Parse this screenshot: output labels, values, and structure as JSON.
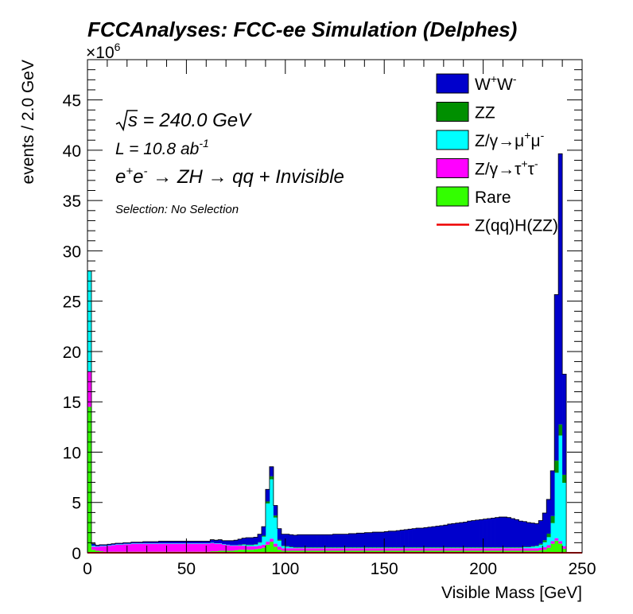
{
  "chart_data": {
    "type": "bar",
    "stacked": true,
    "title": "FCCAnalyses: FCC-ee Simulation (Delphes)",
    "xlabel": "Visible Mass [GeV]",
    "ylabel": "events / 2.0 GeV",
    "y_multiplier_label": "×10",
    "y_multiplier_exponent": "6",
    "xlim": [
      0,
      250
    ],
    "ylim": [
      0,
      49
    ],
    "bin_width": 2,
    "x_ticks": [
      0,
      50,
      100,
      150,
      200,
      250
    ],
    "x_tick_labels": [
      "0",
      "50",
      "100",
      "150",
      "200",
      "250"
    ],
    "y_ticks": [
      0,
      5,
      10,
      15,
      20,
      25,
      30,
      35,
      40,
      45
    ],
    "y_tick_labels": [
      "0",
      "5",
      "10",
      "15",
      "20",
      "25",
      "30",
      "35",
      "40",
      "45"
    ],
    "annotations": {
      "sqrt_s": "s",
      "energy": " = 240.0 GeV",
      "lumi": "L = 10.8 ab",
      "lumi_exp": "-1",
      "process_a": "e",
      "process_b": "e",
      "process_c": " → ZH → qq + Invisible",
      "selection": "Selection: No Selection"
    },
    "legend": {
      "placement": "top-right",
      "entries": [
        {
          "key": "ww",
          "parts": [
            "W",
            "+",
            "W",
            "-"
          ],
          "color": "#0000cc",
          "style": "fill"
        },
        {
          "key": "zz",
          "parts": [
            "ZZ"
          ],
          "color": "#008f00",
          "style": "fill"
        },
        {
          "key": "zmumu",
          "parts": [
            "Z/γ→μ",
            "+",
            "μ",
            "-"
          ],
          "color": "#00ffff",
          "style": "fill"
        },
        {
          "key": "ztautau",
          "parts": [
            "Z/γ→τ",
            "+",
            "τ",
            "-"
          ],
          "color": "#ff00ff",
          "style": "fill"
        },
        {
          "key": "rare",
          "parts": [
            "Rare"
          ],
          "color": "#33ff00",
          "style": "fill"
        },
        {
          "key": "signal",
          "parts": [
            "Z(qq)H(ZZ)"
          ],
          "color": "#ee0000",
          "style": "line"
        }
      ]
    },
    "stack_order": [
      "rare",
      "ztautau",
      "zmumu",
      "zz",
      "ww"
    ],
    "series": [
      {
        "key": "rare",
        "values": [
          14.5,
          0.3,
          0.2,
          0.15,
          0.1,
          0.1,
          0.1,
          0.1,
          0.1,
          0.1,
          0.1,
          0.1,
          0.1,
          0.1,
          0.1,
          0.1,
          0.1,
          0.1,
          0.1,
          0.1,
          0.1,
          0.1,
          0.1,
          0.1,
          0.1,
          0.1,
          0.1,
          0.1,
          0.1,
          0.1,
          0.1,
          0.15,
          0.15,
          0.2,
          0.2,
          0.2,
          0.2,
          0.25,
          0.3,
          0.3,
          0.3,
          0.3,
          0.35,
          0.4,
          0.5,
          0.8,
          1.1,
          0.6,
          0.3,
          0.2,
          0.2,
          0.2,
          0.2,
          0.2,
          0.2,
          0.2,
          0.2,
          0.2,
          0.2,
          0.2,
          0.2,
          0.2,
          0.2,
          0.2,
          0.2,
          0.2,
          0.2,
          0.2,
          0.2,
          0.2,
          0.2,
          0.2,
          0.2,
          0.2,
          0.2,
          0.2,
          0.2,
          0.2,
          0.2,
          0.2,
          0.2,
          0.2,
          0.2,
          0.2,
          0.2,
          0.2,
          0.2,
          0.2,
          0.2,
          0.2,
          0.2,
          0.2,
          0.2,
          0.2,
          0.2,
          0.2,
          0.2,
          0.2,
          0.2,
          0.2,
          0.2,
          0.2,
          0.2,
          0.2,
          0.2,
          0.2,
          0.2,
          0.2,
          0.2,
          0.2,
          0.2,
          0.2,
          0.2,
          0.2,
          0.25,
          0.3,
          0.5,
          0.9,
          1.2,
          0.9,
          0.4,
          0,
          0,
          0,
          0
        ]
      },
      {
        "key": "ztautau",
        "values": [
          3.5,
          0.3,
          0.4,
          0.5,
          0.55,
          0.6,
          0.65,
          0.7,
          0.7,
          0.75,
          0.75,
          0.8,
          0.8,
          0.8,
          0.8,
          0.8,
          0.8,
          0.8,
          0.8,
          0.8,
          0.8,
          0.8,
          0.8,
          0.8,
          0.8,
          0.8,
          0.8,
          0.8,
          0.8,
          0.8,
          0.8,
          0.8,
          0.75,
          0.7,
          0.6,
          0.55,
          0.5,
          0.45,
          0.4,
          0.4,
          0.35,
          0.35,
          0.3,
          0.3,
          0.3,
          0.3,
          0.3,
          0.3,
          0.3,
          0.25,
          0.25,
          0.25,
          0.25,
          0.25,
          0.25,
          0.25,
          0.25,
          0.25,
          0.25,
          0.25,
          0.25,
          0.25,
          0.25,
          0.25,
          0.25,
          0.25,
          0.25,
          0.25,
          0.25,
          0.25,
          0.25,
          0.25,
          0.25,
          0.25,
          0.25,
          0.25,
          0.25,
          0.25,
          0.25,
          0.25,
          0.25,
          0.25,
          0.25,
          0.25,
          0.25,
          0.25,
          0.25,
          0.25,
          0.25,
          0.25,
          0.25,
          0.25,
          0.25,
          0.25,
          0.25,
          0.25,
          0.25,
          0.25,
          0.25,
          0.25,
          0.25,
          0.25,
          0.25,
          0.25,
          0.25,
          0.25,
          0.25,
          0.25,
          0.25,
          0.25,
          0.25,
          0.25,
          0.25,
          0.25,
          0.25,
          0.25,
          0.25,
          0.25,
          0.25,
          0.25,
          0.25,
          0,
          0,
          0,
          0
        ]
      },
      {
        "key": "zmumu",
        "values": [
          10,
          0.1,
          0.05,
          0.05,
          0.05,
          0.05,
          0.05,
          0.05,
          0.05,
          0.05,
          0.05,
          0.05,
          0.05,
          0.05,
          0.05,
          0.05,
          0.05,
          0.05,
          0.05,
          0.05,
          0.05,
          0.05,
          0.05,
          0.05,
          0.05,
          0.05,
          0.05,
          0.05,
          0.05,
          0.05,
          0.05,
          0.05,
          0.05,
          0.05,
          0.05,
          0.05,
          0.05,
          0.05,
          0.05,
          0.1,
          0.1,
          0.1,
          0.15,
          0.3,
          0.8,
          3.8,
          5.9,
          2.6,
          0.6,
          0.2,
          0.15,
          0.1,
          0.05,
          0.05,
          0.05,
          0.05,
          0.05,
          0.05,
          0.05,
          0.05,
          0.05,
          0.05,
          0.05,
          0.05,
          0.05,
          0.05,
          0.05,
          0.05,
          0.05,
          0.05,
          0.05,
          0.05,
          0.05,
          0.05,
          0.05,
          0.05,
          0.05,
          0.05,
          0.05,
          0.05,
          0.05,
          0.05,
          0.05,
          0.05,
          0.05,
          0.05,
          0.05,
          0.05,
          0.05,
          0.05,
          0.05,
          0.05,
          0.05,
          0.05,
          0.05,
          0.05,
          0.05,
          0.05,
          0.05,
          0.05,
          0.05,
          0.05,
          0.05,
          0.05,
          0.05,
          0.05,
          0.05,
          0.05,
          0.05,
          0.05,
          0.1,
          0.1,
          0.15,
          0.2,
          0.3,
          0.5,
          0.8,
          1.8,
          6.5,
          10.5,
          6.3,
          0,
          0,
          0,
          0
        ]
      },
      {
        "key": "zz",
        "values": [
          0,
          0,
          0,
          0,
          0,
          0,
          0,
          0,
          0,
          0,
          0,
          0,
          0,
          0,
          0,
          0,
          0,
          0,
          0,
          0,
          0,
          0,
          0,
          0,
          0,
          0,
          0,
          0,
          0,
          0,
          0,
          0,
          0,
          0,
          0,
          0,
          0,
          0,
          0.05,
          0.05,
          0.05,
          0.05,
          0.05,
          0.05,
          0.1,
          0.2,
          0.3,
          0.2,
          0.1,
          0.05,
          0.05,
          0.05,
          0.05,
          0.05,
          0.05,
          0.05,
          0.05,
          0.05,
          0.05,
          0.05,
          0.05,
          0.05,
          0.05,
          0.05,
          0.05,
          0.05,
          0.05,
          0.05,
          0.05,
          0.05,
          0.05,
          0.05,
          0.05,
          0.05,
          0.05,
          0.05,
          0.05,
          0.05,
          0.05,
          0.05,
          0.05,
          0.05,
          0.05,
          0.05,
          0.05,
          0.05,
          0.05,
          0.05,
          0.05,
          0.05,
          0.05,
          0.05,
          0.05,
          0.05,
          0.05,
          0.05,
          0.05,
          0.05,
          0.05,
          0.05,
          0.05,
          0.05,
          0.05,
          0.05,
          0.05,
          0.05,
          0.05,
          0.05,
          0.05,
          0.05,
          0.05,
          0.05,
          0.05,
          0.05,
          0.1,
          0.2,
          0.35,
          0.7,
          1.2,
          1.1,
          0.8,
          0,
          0,
          0,
          0
        ]
      },
      {
        "key": "ww",
        "values": [
          0,
          0.2,
          0.1,
          0.1,
          0.1,
          0.1,
          0.1,
          0.1,
          0.1,
          0.1,
          0.1,
          0.1,
          0.1,
          0.1,
          0.15,
          0.15,
          0.15,
          0.15,
          0.2,
          0.2,
          0.2,
          0.2,
          0.2,
          0.2,
          0.2,
          0.2,
          0.2,
          0.2,
          0.2,
          0.2,
          0.2,
          0.3,
          0.3,
          0.35,
          0.35,
          0.4,
          0.45,
          0.5,
          0.55,
          0.6,
          0.7,
          0.7,
          0.7,
          0.8,
          0.9,
          1.2,
          0.95,
          1.0,
          1.1,
          1.15,
          1.2,
          1.2,
          1.2,
          1.25,
          1.25,
          1.25,
          1.25,
          1.25,
          1.25,
          1.25,
          1.25,
          1.25,
          1.3,
          1.3,
          1.3,
          1.3,
          1.35,
          1.35,
          1.4,
          1.4,
          1.45,
          1.45,
          1.5,
          1.5,
          1.5,
          1.55,
          1.6,
          1.6,
          1.65,
          1.7,
          1.75,
          1.8,
          1.85,
          1.9,
          1.9,
          1.95,
          2.0,
          2.05,
          2.1,
          2.15,
          2.2,
          2.3,
          2.35,
          2.4,
          2.45,
          2.5,
          2.6,
          2.65,
          2.7,
          2.75,
          2.8,
          2.85,
          2.9,
          2.95,
          3.0,
          3.0,
          2.95,
          2.85,
          2.75,
          2.6,
          2.5,
          2.4,
          2.3,
          2.2,
          2.3,
          2.7,
          3.4,
          4.5,
          16.5,
          26.9,
          10,
          0,
          0,
          0,
          0
        ]
      },
      {
        "key": "signal",
        "values": [
          0,
          0,
          0,
          0,
          0,
          0,
          0,
          0,
          0,
          0,
          0,
          0,
          0,
          0,
          0,
          0,
          0,
          0,
          0,
          0,
          0,
          0,
          0,
          0,
          0,
          0,
          0,
          0,
          0,
          0,
          0,
          0,
          0,
          0,
          0,
          0,
          0,
          0,
          0,
          0,
          0,
          0,
          0,
          0,
          0,
          0,
          0,
          0,
          0,
          0,
          0,
          0,
          0,
          0,
          0,
          0,
          0,
          0,
          0,
          0,
          0,
          0,
          0,
          0,
          0,
          0,
          0,
          0,
          0,
          0,
          0,
          0,
          0,
          0,
          0,
          0,
          0,
          0,
          0,
          0,
          0,
          0,
          0,
          0,
          0,
          0,
          0,
          0,
          0,
          0,
          0,
          0,
          0,
          0,
          0,
          0,
          0,
          0,
          0,
          0,
          0,
          0,
          0,
          0,
          0,
          0,
          0,
          0,
          0,
          0,
          0,
          0,
          0,
          0,
          0,
          0,
          0,
          0,
          0,
          0,
          0,
          0,
          0,
          0,
          0
        ]
      }
    ]
  }
}
